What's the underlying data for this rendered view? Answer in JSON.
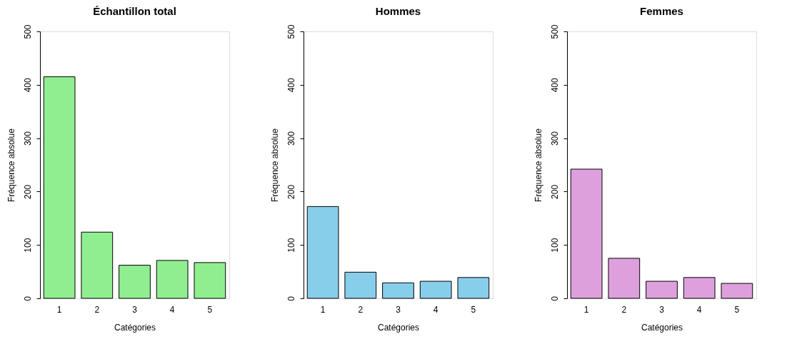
{
  "chart_data": [
    {
      "type": "bar",
      "title": "Échantillon total",
      "xlabel": "Catégories",
      "ylabel": "Fréquence absolue",
      "categories": [
        "1",
        "2",
        "3",
        "4",
        "5"
      ],
      "values": [
        415,
        124,
        62,
        71,
        67
      ],
      "color": "#90ee90",
      "ylim": [
        0,
        500
      ],
      "yticks": [
        0,
        100,
        200,
        300,
        400,
        500
      ]
    },
    {
      "type": "bar",
      "title": "Hommes",
      "xlabel": "Catégories",
      "ylabel": "Fréquence absolue",
      "categories": [
        "1",
        "2",
        "3",
        "4",
        "5"
      ],
      "values": [
        172,
        49,
        29,
        32,
        39
      ],
      "color": "#87ceeb",
      "ylim": [
        0,
        500
      ],
      "yticks": [
        0,
        100,
        200,
        300,
        400,
        500
      ]
    },
    {
      "type": "bar",
      "title": "Femmes",
      "xlabel": "Catégories",
      "ylabel": "Fréquence absolue",
      "categories": [
        "1",
        "2",
        "3",
        "4",
        "5"
      ],
      "values": [
        242,
        75,
        32,
        39,
        28
      ],
      "color": "#dda0dd",
      "ylim": [
        0,
        500
      ],
      "yticks": [
        0,
        100,
        200,
        300,
        400,
        500
      ]
    }
  ]
}
